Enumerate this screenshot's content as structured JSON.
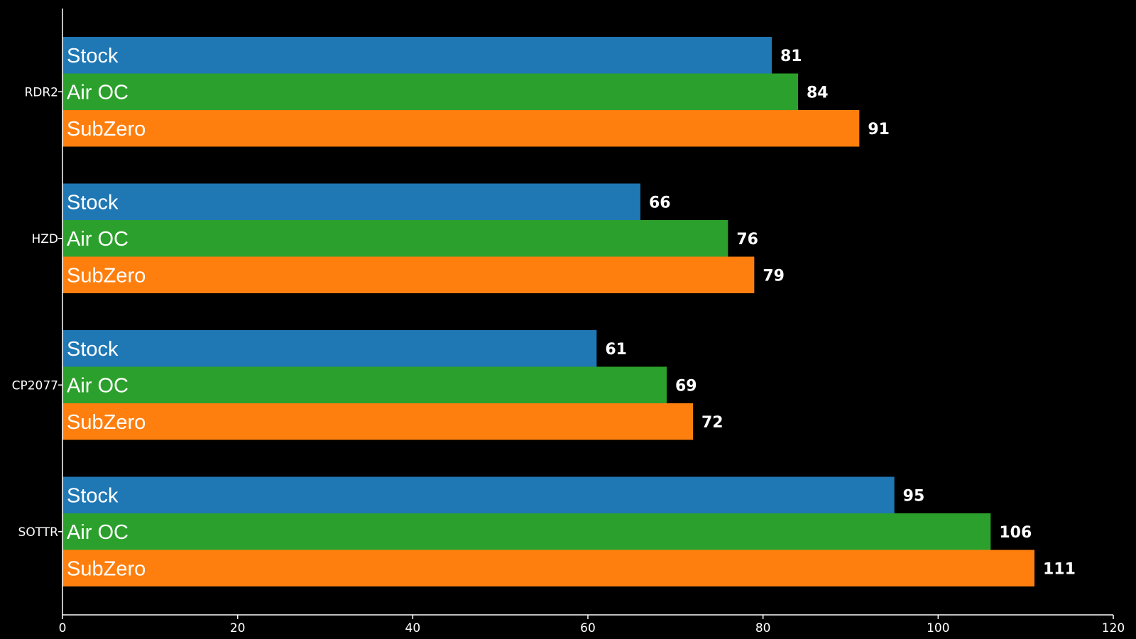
{
  "chart_data": {
    "type": "bar",
    "orientation": "horizontal",
    "categories": [
      "RDR2",
      "HZD",
      "CP2077",
      "SOTTR"
    ],
    "series": [
      {
        "name": "Stock",
        "color": "#1f77b4",
        "values": [
          81,
          66,
          61,
          95
        ]
      },
      {
        "name": "Air OC",
        "color": "#2ca02c",
        "values": [
          84,
          76,
          69,
          106
        ]
      },
      {
        "name": "SubZero",
        "color": "#ff7f0e",
        "values": [
          91,
          79,
          72,
          111
        ]
      }
    ],
    "xlim": [
      0,
      120
    ],
    "xticks": [
      0,
      20,
      40,
      60,
      80,
      100,
      120
    ],
    "title": "",
    "xlabel": "",
    "ylabel": "",
    "grid": false,
    "legend": "none (series names drawn inside bars)",
    "background_color": "#000000",
    "text_color": "#ffffff",
    "axis_color": "#ffffff"
  }
}
